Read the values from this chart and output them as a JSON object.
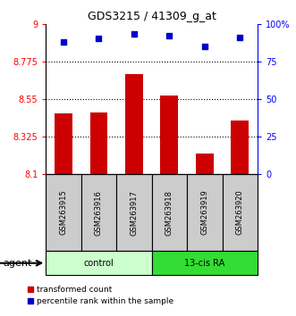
{
  "title": "GDS3215 / 41309_g_at",
  "samples": [
    "GSM263915",
    "GSM263916",
    "GSM263917",
    "GSM263918",
    "GSM263919",
    "GSM263920"
  ],
  "bar_values": [
    8.46,
    8.47,
    8.7,
    8.57,
    8.22,
    8.42
  ],
  "percentile_values": [
    88,
    90,
    93,
    92,
    85,
    91
  ],
  "ylim_left": [
    8.1,
    9.0
  ],
  "ylim_right": [
    0,
    100
  ],
  "yticks_left": [
    8.1,
    8.325,
    8.55,
    8.775,
    9.0
  ],
  "ytick_labels_left": [
    "8.1",
    "8.325",
    "8.55",
    "8.775",
    "9"
  ],
  "yticks_right": [
    0,
    25,
    50,
    75,
    100
  ],
  "ytick_labels_right": [
    "0",
    "25",
    "50",
    "75",
    "100%"
  ],
  "hlines": [
    8.325,
    8.55,
    8.775
  ],
  "bar_color": "#cc0000",
  "dot_color": "#0000cc",
  "bar_bottom": 8.1,
  "groups": [
    {
      "label": "control",
      "indices": [
        0,
        1,
        2
      ],
      "color": "#ccffcc"
    },
    {
      "label": "13-cis RA",
      "indices": [
        3,
        4,
        5
      ],
      "color": "#33dd33"
    }
  ],
  "agent_label": "agent",
  "legend_items": [
    {
      "label": "transformed count",
      "color": "#cc0000"
    },
    {
      "label": "percentile rank within the sample",
      "color": "#0000cc"
    }
  ]
}
